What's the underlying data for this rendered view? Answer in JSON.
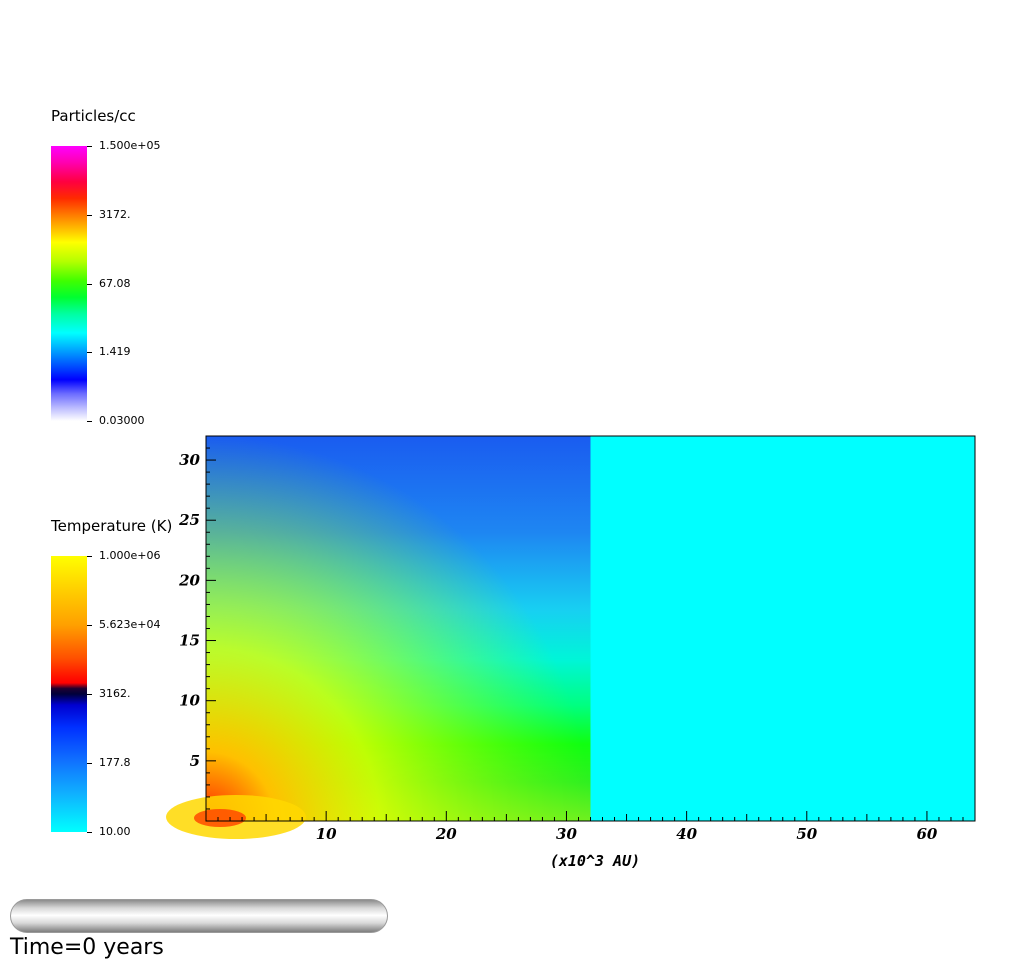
{
  "density_legend": {
    "title": "Particles/cc",
    "ticks": [
      "1.500e+05",
      "3172.",
      "67.08",
      "1.419",
      "0.03000"
    ]
  },
  "temperature_legend": {
    "title": "Temperature (K)",
    "ticks": [
      "1.000e+06",
      "5.623e+04",
      "3162.",
      "177.8",
      "10.00"
    ]
  },
  "chart_data": {
    "type": "heatmap",
    "title": "",
    "xlabel": "(x10^3 AU)",
    "ylabel": "",
    "xlim": [
      0,
      64
    ],
    "ylim": [
      0,
      32
    ],
    "x_ticks": [
      10,
      20,
      30,
      40,
      50,
      60
    ],
    "y_ticks": [
      5,
      10,
      15,
      20,
      25,
      30
    ],
    "regions": [
      {
        "x_range": [
          0,
          32
        ],
        "y_range": [
          0,
          32
        ],
        "field": "density/temperature",
        "colormap": "density gradient: blue at top, green near bottom, yellow/red at origin"
      },
      {
        "x_range": [
          32,
          64
        ],
        "y_range": [
          0,
          32
        ],
        "field": "uniform",
        "color": "#00ffff"
      }
    ],
    "grid": false
  },
  "colors": {
    "uniform_region": "#00ffff",
    "plot_frame": "#000000"
  },
  "time_slider": {
    "value": 0
  },
  "time_text": "Time=0 years"
}
